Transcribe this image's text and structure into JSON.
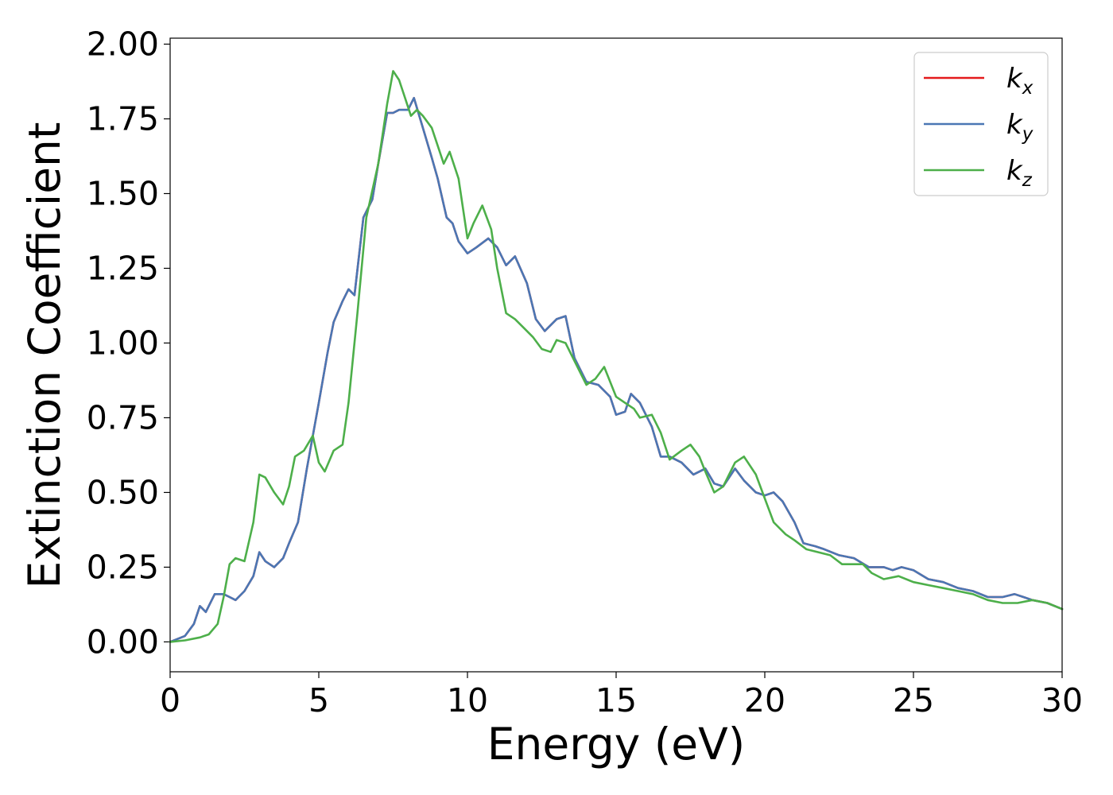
{
  "chart_data": {
    "type": "line",
    "title": "",
    "xlabel": "Energy (eV)",
    "ylabel": "Extinction Coefficient",
    "xlim": [
      0,
      30
    ],
    "ylim": [
      -0.1,
      2.02
    ],
    "xticks": [
      0,
      5,
      10,
      15,
      20,
      25,
      30
    ],
    "xtick_labels": [
      "0",
      "5",
      "10",
      "15",
      "20",
      "25",
      "30"
    ],
    "yticks": [
      0,
      0.25,
      0.5,
      0.75,
      1.0,
      1.25,
      1.5,
      1.75,
      2.0
    ],
    "ytick_labels": [
      "0.00",
      "0.25",
      "0.50",
      "0.75",
      "1.00",
      "1.25",
      "1.50",
      "1.75",
      "2.00"
    ],
    "grid": false,
    "legend_position": "top-right",
    "series": [
      {
        "name": "k_x",
        "legend_main": "k",
        "legend_sub": "x",
        "color": "#e41a1c",
        "x": [
          0,
          0.5,
          0.8,
          1.0,
          1.2,
          1.5,
          1.8,
          2.0,
          2.2,
          2.5,
          2.8,
          3.0,
          3.2,
          3.5,
          3.8,
          4.0,
          4.3,
          4.6,
          5.0,
          5.3,
          5.5,
          5.8,
          6.0,
          6.2,
          6.5,
          6.8,
          7.0,
          7.3,
          7.5,
          7.7,
          8.0,
          8.2,
          8.5,
          8.8,
          9.0,
          9.3,
          9.5,
          9.7,
          10.0,
          10.3,
          10.7,
          11.0,
          11.3,
          11.6,
          12.0,
          12.3,
          12.6,
          13.0,
          13.3,
          13.6,
          14.0,
          14.4,
          14.8,
          15.0,
          15.3,
          15.5,
          15.8,
          16.2,
          16.5,
          16.8,
          17.2,
          17.6,
          18.0,
          18.3,
          18.6,
          19.0,
          19.3,
          19.7,
          20.0,
          20.3,
          20.6,
          21.0,
          21.3,
          21.7,
          22.0,
          22.5,
          23.0,
          23.5,
          24.0,
          24.3,
          24.6,
          25.0,
          25.5,
          26.0,
          26.5,
          27.0,
          27.5,
          28.0,
          28.4,
          28.7,
          29.0,
          29.5,
          30.0
        ],
        "values": [
          0,
          0.02,
          0.06,
          0.12,
          0.1,
          0.16,
          0.16,
          0.15,
          0.14,
          0.17,
          0.22,
          0.3,
          0.27,
          0.25,
          0.28,
          0.33,
          0.4,
          0.58,
          0.8,
          0.97,
          1.07,
          1.14,
          1.18,
          1.16,
          1.42,
          1.48,
          1.6,
          1.77,
          1.77,
          1.78,
          1.78,
          1.82,
          1.72,
          1.62,
          1.55,
          1.42,
          1.4,
          1.34,
          1.3,
          1.32,
          1.35,
          1.32,
          1.26,
          1.29,
          1.2,
          1.08,
          1.04,
          1.08,
          1.09,
          0.95,
          0.87,
          0.86,
          0.82,
          0.76,
          0.77,
          0.83,
          0.8,
          0.72,
          0.62,
          0.62,
          0.6,
          0.56,
          0.58,
          0.53,
          0.52,
          0.58,
          0.54,
          0.5,
          0.49,
          0.5,
          0.47,
          0.4,
          0.33,
          0.32,
          0.31,
          0.29,
          0.28,
          0.25,
          0.25,
          0.24,
          0.25,
          0.24,
          0.21,
          0.2,
          0.18,
          0.17,
          0.15,
          0.15,
          0.16,
          0.15,
          0.14,
          0.13,
          0.11
        ]
      },
      {
        "name": "k_y",
        "legend_main": "k",
        "legend_sub": "y",
        "color": "#4a77b4",
        "x": [
          0,
          0.5,
          0.8,
          1.0,
          1.2,
          1.5,
          1.8,
          2.0,
          2.2,
          2.5,
          2.8,
          3.0,
          3.2,
          3.5,
          3.8,
          4.0,
          4.3,
          4.6,
          5.0,
          5.3,
          5.5,
          5.8,
          6.0,
          6.2,
          6.5,
          6.8,
          7.0,
          7.3,
          7.5,
          7.7,
          8.0,
          8.2,
          8.5,
          8.8,
          9.0,
          9.3,
          9.5,
          9.7,
          10.0,
          10.3,
          10.7,
          11.0,
          11.3,
          11.6,
          12.0,
          12.3,
          12.6,
          13.0,
          13.3,
          13.6,
          14.0,
          14.4,
          14.8,
          15.0,
          15.3,
          15.5,
          15.8,
          16.2,
          16.5,
          16.8,
          17.2,
          17.6,
          18.0,
          18.3,
          18.6,
          19.0,
          19.3,
          19.7,
          20.0,
          20.3,
          20.6,
          21.0,
          21.3,
          21.7,
          22.0,
          22.5,
          23.0,
          23.5,
          24.0,
          24.3,
          24.6,
          25.0,
          25.5,
          26.0,
          26.5,
          27.0,
          27.5,
          28.0,
          28.4,
          28.7,
          29.0,
          29.5,
          30.0
        ],
        "values": [
          0,
          0.02,
          0.06,
          0.12,
          0.1,
          0.16,
          0.16,
          0.15,
          0.14,
          0.17,
          0.22,
          0.3,
          0.27,
          0.25,
          0.28,
          0.33,
          0.4,
          0.58,
          0.8,
          0.97,
          1.07,
          1.14,
          1.18,
          1.16,
          1.42,
          1.48,
          1.6,
          1.77,
          1.77,
          1.78,
          1.78,
          1.82,
          1.72,
          1.62,
          1.55,
          1.42,
          1.4,
          1.34,
          1.3,
          1.32,
          1.35,
          1.32,
          1.26,
          1.29,
          1.2,
          1.08,
          1.04,
          1.08,
          1.09,
          0.95,
          0.87,
          0.86,
          0.82,
          0.76,
          0.77,
          0.83,
          0.8,
          0.72,
          0.62,
          0.62,
          0.6,
          0.56,
          0.58,
          0.53,
          0.52,
          0.58,
          0.54,
          0.5,
          0.49,
          0.5,
          0.47,
          0.4,
          0.33,
          0.32,
          0.31,
          0.29,
          0.28,
          0.25,
          0.25,
          0.24,
          0.25,
          0.24,
          0.21,
          0.2,
          0.18,
          0.17,
          0.15,
          0.15,
          0.16,
          0.15,
          0.14,
          0.13,
          0.11
        ]
      },
      {
        "name": "k_z",
        "legend_main": "k",
        "legend_sub": "z",
        "color": "#4daf4a",
        "x": [
          0,
          0.5,
          1.0,
          1.3,
          1.6,
          1.8,
          2.0,
          2.2,
          2.5,
          2.8,
          3.0,
          3.2,
          3.5,
          3.8,
          4.0,
          4.2,
          4.5,
          4.8,
          5.0,
          5.2,
          5.5,
          5.8,
          6.0,
          6.3,
          6.6,
          7.0,
          7.3,
          7.5,
          7.7,
          7.9,
          8.1,
          8.3,
          8.5,
          8.8,
          9.0,
          9.2,
          9.4,
          9.7,
          10.0,
          10.2,
          10.5,
          10.8,
          11.0,
          11.3,
          11.6,
          11.9,
          12.2,
          12.5,
          12.8,
          13.0,
          13.3,
          13.6,
          14.0,
          14.3,
          14.6,
          15.0,
          15.3,
          15.6,
          15.8,
          16.2,
          16.5,
          16.8,
          17.2,
          17.5,
          17.8,
          18.0,
          18.3,
          18.6,
          19.0,
          19.3,
          19.7,
          20.0,
          20.3,
          20.7,
          21.0,
          21.4,
          21.8,
          22.2,
          22.6,
          23.0,
          23.3,
          23.6,
          24.0,
          24.5,
          25.0,
          25.5,
          26.0,
          26.5,
          27.0,
          27.5,
          28.0,
          28.5,
          29.0,
          29.5,
          30.0
        ],
        "values": [
          0,
          0.005,
          0.015,
          0.025,
          0.06,
          0.15,
          0.26,
          0.28,
          0.27,
          0.4,
          0.56,
          0.55,
          0.5,
          0.46,
          0.52,
          0.62,
          0.64,
          0.69,
          0.6,
          0.57,
          0.64,
          0.66,
          0.8,
          1.1,
          1.42,
          1.6,
          1.8,
          1.91,
          1.88,
          1.82,
          1.76,
          1.78,
          1.76,
          1.72,
          1.66,
          1.6,
          1.64,
          1.55,
          1.35,
          1.4,
          1.46,
          1.38,
          1.25,
          1.1,
          1.08,
          1.05,
          1.02,
          0.98,
          0.97,
          1.01,
          1.0,
          0.94,
          0.86,
          0.88,
          0.92,
          0.82,
          0.8,
          0.78,
          0.75,
          0.76,
          0.7,
          0.61,
          0.64,
          0.66,
          0.62,
          0.57,
          0.5,
          0.52,
          0.6,
          0.62,
          0.56,
          0.48,
          0.4,
          0.36,
          0.34,
          0.31,
          0.3,
          0.29,
          0.26,
          0.26,
          0.26,
          0.23,
          0.21,
          0.22,
          0.2,
          0.19,
          0.18,
          0.17,
          0.16,
          0.14,
          0.13,
          0.13,
          0.14,
          0.13,
          0.11
        ]
      }
    ]
  }
}
